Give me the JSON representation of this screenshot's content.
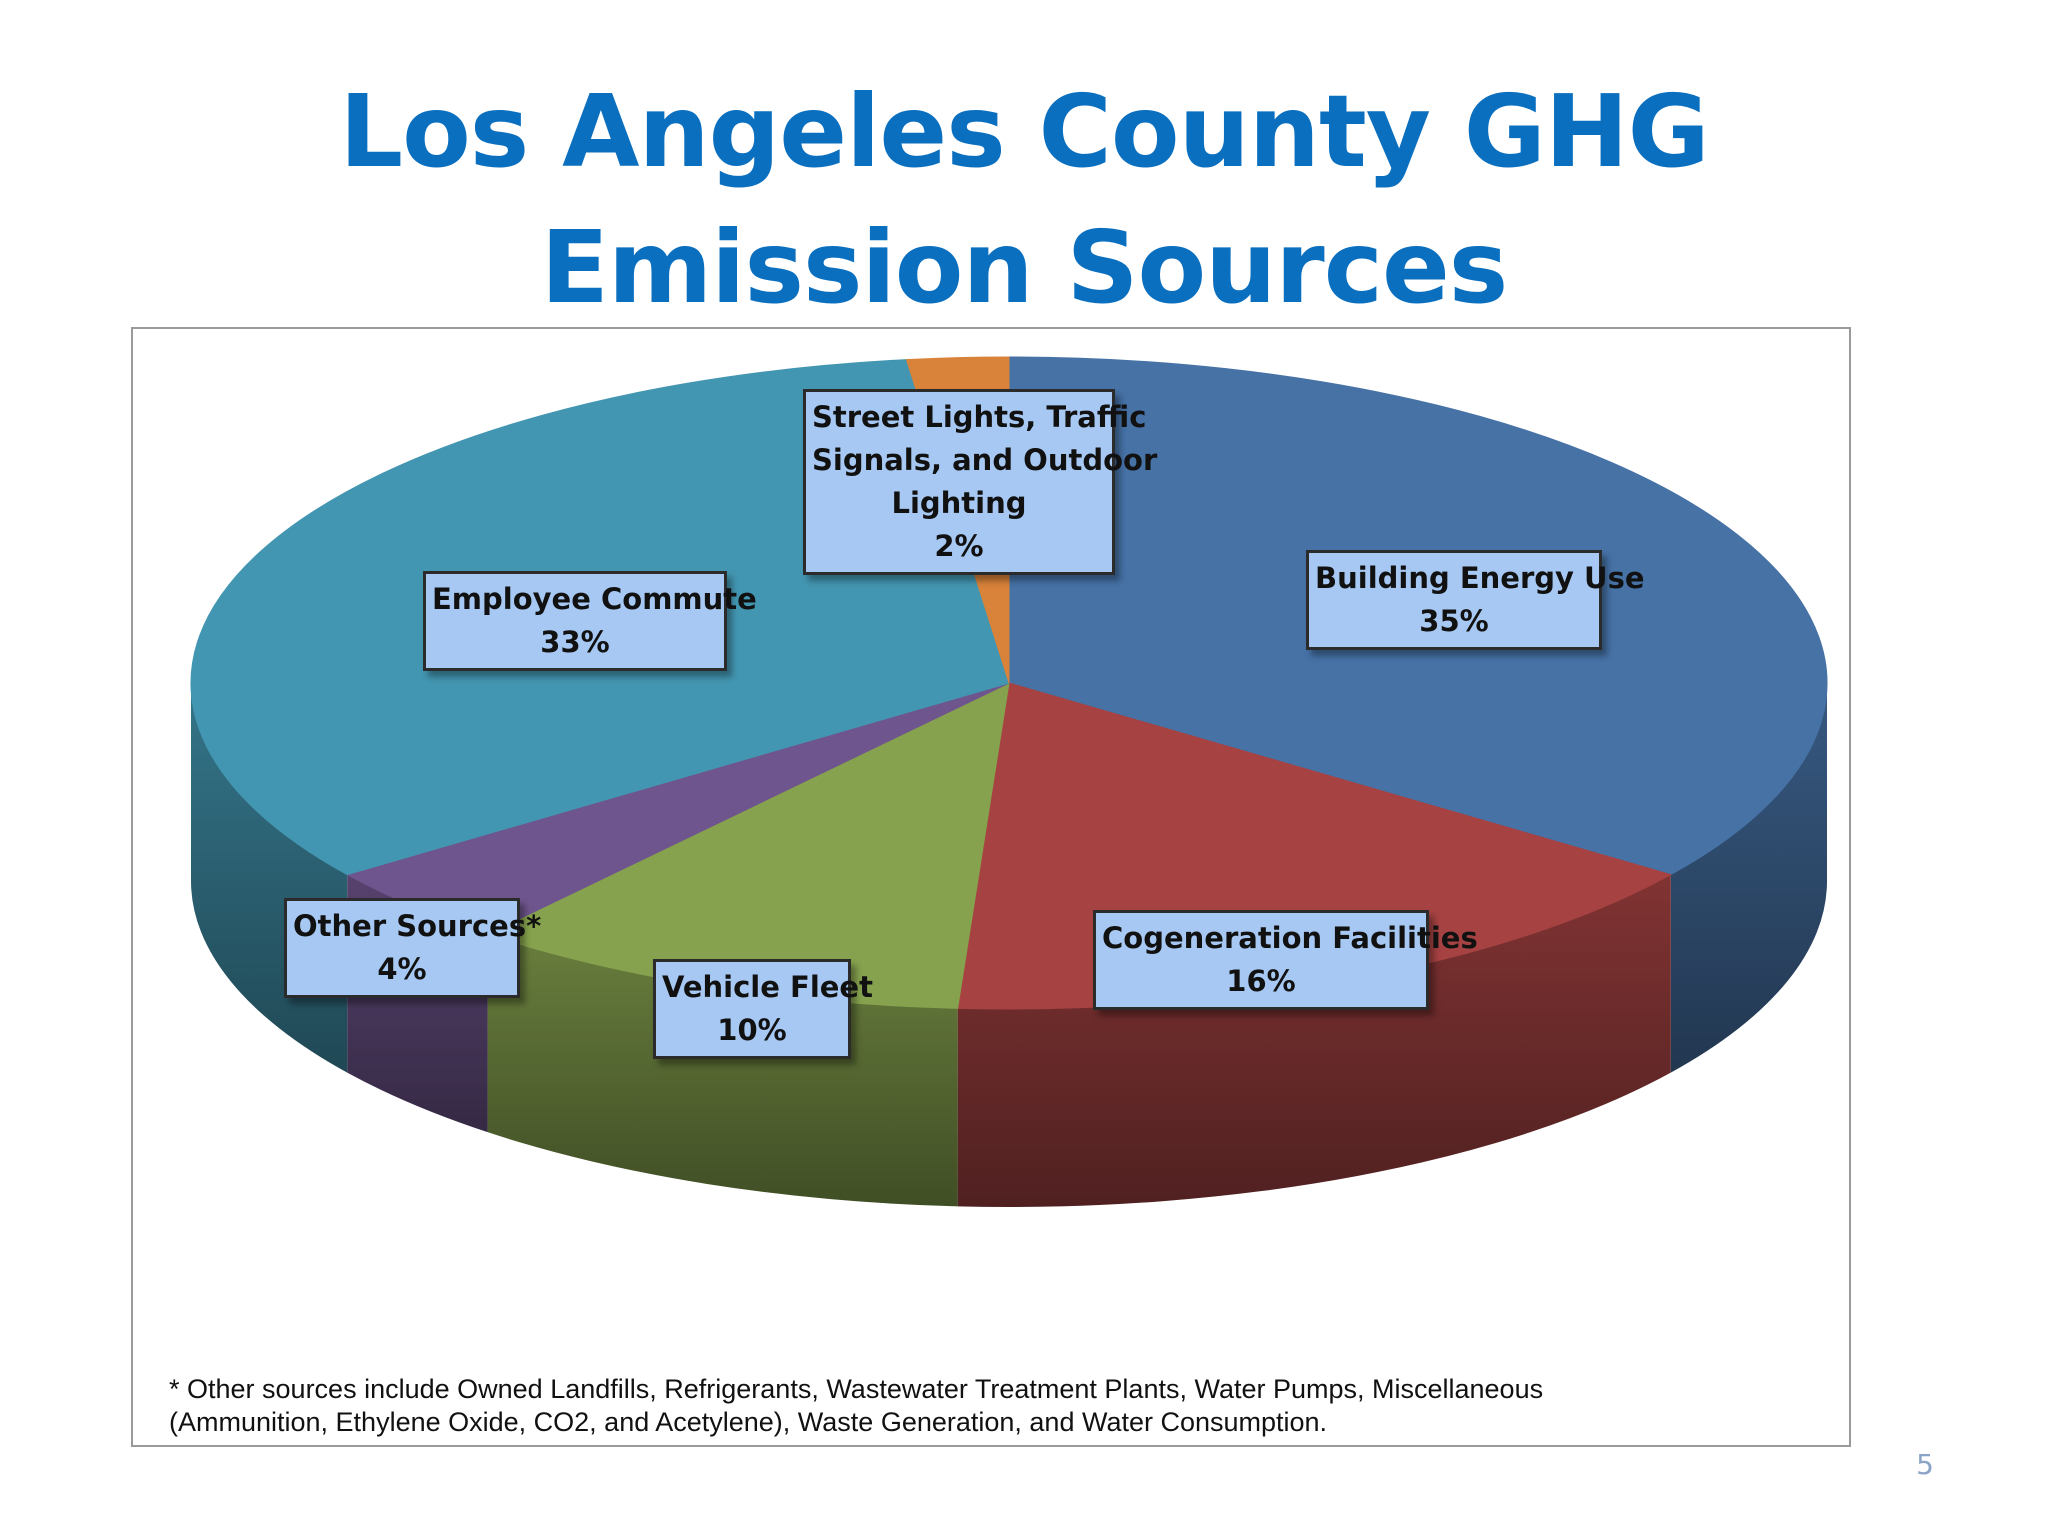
{
  "title": "Los Angeles County GHG Emission Sources",
  "chart_data": {
    "type": "pie",
    "title": "Los Angeles County GHG Emission Sources",
    "slices": [
      {
        "label": "Building Energy Use",
        "value": 35,
        "value_label": "35%",
        "color": "#4672a6"
      },
      {
        "label": "Cogeneration Facilities",
        "value": 16,
        "value_label": "16%",
        "color": "#a64242"
      },
      {
        "label": "Vehicle Fleet",
        "value": 10,
        "value_label": "10%",
        "color": "#86a24e"
      },
      {
        "label": "Other Sources*",
        "value": 4,
        "value_label": "4%",
        "color": "#6f558d"
      },
      {
        "label": "Employee Commute",
        "value": 33,
        "value_label": "33%",
        "color": "#4396b1"
      },
      {
        "label": "Street Lights, Traffic Signals, and Outdoor Lighting",
        "value": 2,
        "value_label": "2%",
        "color": "#d8823a"
      }
    ],
    "style": "3d"
  },
  "labels": {
    "building": {
      "line1": "Building Energy Use",
      "value": "35%"
    },
    "cogen": {
      "line1": "Cogeneration Facilities",
      "value": "16%"
    },
    "vehicle": {
      "line1": "Vehicle Fleet",
      "value": "10%"
    },
    "other": {
      "line1": "Other Sources*",
      "value": "4%"
    },
    "commute": {
      "line1": "Employee Commute",
      "value": "33%"
    },
    "street": {
      "line1": "Street Lights, Traffic",
      "line2": "Signals, and Outdoor",
      "line3": "Lighting",
      "value": "2%"
    }
  },
  "footnote": {
    "line1": "* Other sources include Owned Landfills, Refrigerants, Wastewater Treatment Plants, Water Pumps, Miscellaneous",
    "line2": "(Ammunition, Ethylene Oxide, CO2, and Acetylene), Waste Generation, and  Water Consumption."
  },
  "page_number": "5"
}
